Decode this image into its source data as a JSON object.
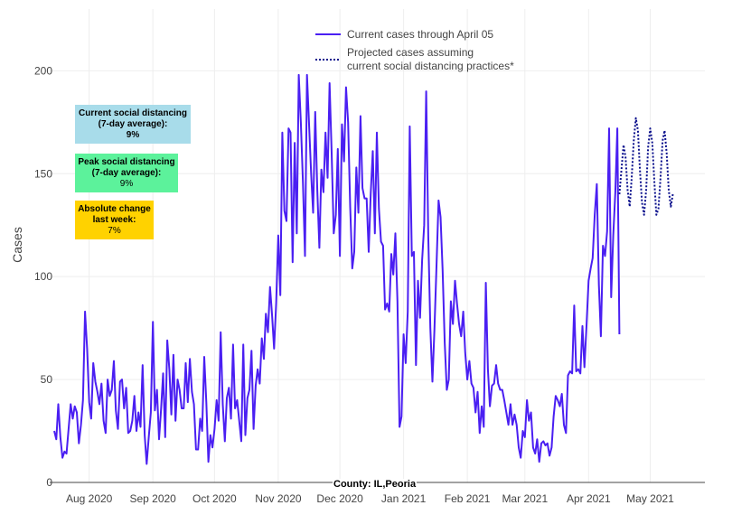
{
  "chart_data": {
    "type": "line",
    "ylabel": "Cases",
    "ylim": [
      0,
      230
    ],
    "yticks": [
      0,
      50,
      100,
      150,
      200
    ],
    "x_domain_days": [
      0,
      310
    ],
    "x_start_date": "2020-07-15",
    "xticks": [
      {
        "label": "Aug 2020",
        "day": 17
      },
      {
        "label": "Sep 2020",
        "day": 48
      },
      {
        "label": "Oct 2020",
        "day": 78
      },
      {
        "label": "Nov 2020",
        "day": 109
      },
      {
        "label": "Dec 2020",
        "day": 139
      },
      {
        "label": "Jan 2021",
        "day": 170
      },
      {
        "label": "Feb 2021",
        "day": 201
      },
      {
        "label": "Mar 2021",
        "day": 229
      },
      {
        "label": "Apr 2021",
        "day": 260
      },
      {
        "label": "May 2021",
        "day": 290
      }
    ],
    "legend": {
      "position": "top-center",
      "items": [
        {
          "label": "Current cases through April 05",
          "style": "solid"
        },
        {
          "label_line1": "Projected cases assuming",
          "label_line2": "current social distancing practices*",
          "style": "dotted"
        }
      ]
    },
    "series": [
      {
        "name": "Current cases through April 05",
        "color": "#4a1ff2",
        "style": "solid",
        "values": [
          [
            0,
            25
          ],
          [
            1,
            21
          ],
          [
            2,
            38
          ],
          [
            3,
            22
          ],
          [
            4,
            12
          ],
          [
            5,
            15
          ],
          [
            6,
            14
          ],
          [
            7,
            26
          ],
          [
            8,
            38
          ],
          [
            9,
            31
          ],
          [
            10,
            37
          ],
          [
            11,
            34
          ],
          [
            12,
            19
          ],
          [
            13,
            28
          ],
          [
            14,
            40
          ],
          [
            15,
            83
          ],
          [
            16,
            65
          ],
          [
            17,
            39
          ],
          [
            18,
            31
          ],
          [
            19,
            58
          ],
          [
            20,
            49
          ],
          [
            21,
            44
          ],
          [
            22,
            38
          ],
          [
            23,
            48
          ],
          [
            24,
            30
          ],
          [
            25,
            24
          ],
          [
            26,
            50
          ],
          [
            27,
            42
          ],
          [
            28,
            45
          ],
          [
            29,
            59
          ],
          [
            30,
            35
          ],
          [
            31,
            26
          ],
          [
            32,
            49
          ],
          [
            33,
            50
          ],
          [
            34,
            36
          ],
          [
            35,
            46
          ],
          [
            36,
            24
          ],
          [
            37,
            25
          ],
          [
            38,
            30
          ],
          [
            39,
            42
          ],
          [
            40,
            25
          ],
          [
            41,
            34
          ],
          [
            42,
            27
          ],
          [
            43,
            57
          ],
          [
            44,
            23
          ],
          [
            45,
            9
          ],
          [
            46,
            22
          ],
          [
            47,
            34
          ],
          [
            48,
            78
          ],
          [
            49,
            35
          ],
          [
            50,
            45
          ],
          [
            51,
            21
          ],
          [
            52,
            36
          ],
          [
            53,
            53
          ],
          [
            54,
            22
          ],
          [
            55,
            69
          ],
          [
            56,
            55
          ],
          [
            57,
            33
          ],
          [
            58,
            62
          ],
          [
            59,
            30
          ],
          [
            60,
            50
          ],
          [
            61,
            45
          ],
          [
            62,
            36
          ],
          [
            63,
            36
          ],
          [
            64,
            58
          ],
          [
            65,
            39
          ],
          [
            66,
            60
          ],
          [
            67,
            44
          ],
          [
            68,
            38
          ],
          [
            69,
            16
          ],
          [
            70,
            16
          ],
          [
            71,
            31
          ],
          [
            72,
            25
          ],
          [
            73,
            61
          ],
          [
            74,
            39
          ],
          [
            75,
            10
          ],
          [
            76,
            23
          ],
          [
            77,
            17
          ],
          [
            78,
            26
          ],
          [
            79,
            40
          ],
          [
            80,
            30
          ],
          [
            81,
            73
          ],
          [
            82,
            38
          ],
          [
            83,
            20
          ],
          [
            84,
            41
          ],
          [
            85,
            46
          ],
          [
            86,
            31
          ],
          [
            87,
            67
          ],
          [
            88,
            36
          ],
          [
            89,
            40
          ],
          [
            90,
            30
          ],
          [
            91,
            20
          ],
          [
            92,
            67
          ],
          [
            93,
            23
          ],
          [
            94,
            41
          ],
          [
            95,
            45
          ],
          [
            96,
            64
          ],
          [
            97,
            26
          ],
          [
            98,
            47
          ],
          [
            99,
            55
          ],
          [
            100,
            48
          ],
          [
            101,
            70
          ],
          [
            102,
            60
          ],
          [
            103,
            82
          ],
          [
            104,
            73
          ],
          [
            105,
            95
          ],
          [
            106,
            81
          ],
          [
            107,
            65
          ],
          [
            108,
            87
          ],
          [
            109,
            120
          ],
          [
            110,
            91
          ],
          [
            111,
            170
          ],
          [
            112,
            132
          ],
          [
            113,
            127
          ],
          [
            114,
            172
          ],
          [
            115,
            170
          ],
          [
            116,
            107
          ],
          [
            117,
            165
          ],
          [
            118,
            121
          ],
          [
            119,
            198
          ],
          [
            120,
            175
          ],
          [
            121,
            146
          ],
          [
            122,
            110
          ],
          [
            123,
            198
          ],
          [
            124,
            174
          ],
          [
            125,
            150
          ],
          [
            126,
            131
          ],
          [
            127,
            180
          ],
          [
            128,
            142
          ],
          [
            129,
            114
          ],
          [
            130,
            152
          ],
          [
            131,
            141
          ],
          [
            132,
            170
          ],
          [
            133,
            148
          ],
          [
            134,
            194
          ],
          [
            135,
            160
          ],
          [
            136,
            121
          ],
          [
            137,
            130
          ],
          [
            138,
            162
          ],
          [
            139,
            110
          ],
          [
            140,
            174
          ],
          [
            141,
            156
          ],
          [
            142,
            192
          ],
          [
            143,
            175
          ],
          [
            144,
            134
          ],
          [
            145,
            104
          ],
          [
            146,
            112
          ],
          [
            147,
            153
          ],
          [
            148,
            131
          ],
          [
            149,
            178
          ],
          [
            150,
            143
          ],
          [
            151,
            138
          ],
          [
            152,
            138
          ],
          [
            153,
            112
          ],
          [
            154,
            140
          ],
          [
            155,
            161
          ],
          [
            156,
            121
          ],
          [
            157,
            170
          ],
          [
            158,
            133
          ],
          [
            159,
            117
          ],
          [
            160,
            115
          ],
          [
            161,
            84
          ],
          [
            162,
            87
          ],
          [
            163,
            83
          ],
          [
            164,
            111
          ],
          [
            165,
            101
          ],
          [
            166,
            121
          ],
          [
            167,
            88
          ],
          [
            168,
            27
          ],
          [
            169,
            32
          ],
          [
            170,
            72
          ],
          [
            171,
            58
          ],
          [
            172,
            83
          ],
          [
            173,
            173
          ],
          [
            174,
            110
          ],
          [
            175,
            112
          ],
          [
            176,
            57
          ],
          [
            177,
            98
          ],
          [
            178,
            80
          ],
          [
            179,
            108
          ],
          [
            180,
            125
          ],
          [
            181,
            190
          ],
          [
            182,
            120
          ],
          [
            183,
            75
          ],
          [
            184,
            49
          ],
          [
            185,
            74
          ],
          [
            186,
            105
          ],
          [
            187,
            137
          ],
          [
            188,
            129
          ],
          [
            189,
            103
          ],
          [
            190,
            68
          ],
          [
            191,
            45
          ],
          [
            192,
            50
          ],
          [
            193,
            88
          ],
          [
            194,
            77
          ],
          [
            195,
            98
          ],
          [
            196,
            87
          ],
          [
            197,
            77
          ],
          [
            198,
            71
          ],
          [
            199,
            83
          ],
          [
            200,
            63
          ],
          [
            201,
            50
          ],
          [
            202,
            59
          ],
          [
            203,
            48
          ],
          [
            204,
            46
          ],
          [
            205,
            34
          ],
          [
            206,
            44
          ],
          [
            207,
            24
          ],
          [
            208,
            37
          ],
          [
            209,
            27
          ],
          [
            210,
            97
          ],
          [
            211,
            55
          ],
          [
            212,
            37
          ],
          [
            213,
            47
          ],
          [
            214,
            48
          ],
          [
            215,
            57
          ],
          [
            216,
            48
          ],
          [
            217,
            45
          ],
          [
            218,
            45
          ],
          [
            219,
            40
          ],
          [
            220,
            34
          ],
          [
            221,
            28
          ],
          [
            222,
            38
          ],
          [
            223,
            28
          ],
          [
            224,
            33
          ],
          [
            225,
            28
          ],
          [
            226,
            17
          ],
          [
            227,
            12
          ],
          [
            228,
            25
          ],
          [
            229,
            22
          ],
          [
            230,
            40
          ],
          [
            231,
            30
          ],
          [
            232,
            34
          ],
          [
            233,
            17
          ],
          [
            234,
            14
          ],
          [
            235,
            21
          ],
          [
            236,
            10
          ],
          [
            237,
            19
          ],
          [
            238,
            20
          ],
          [
            239,
            18
          ],
          [
            240,
            19
          ],
          [
            241,
            13
          ],
          [
            242,
            17
          ],
          [
            243,
            32
          ],
          [
            244,
            42
          ],
          [
            245,
            40
          ],
          [
            246,
            37
          ],
          [
            247,
            43
          ],
          [
            248,
            28
          ],
          [
            249,
            24
          ],
          [
            250,
            52
          ],
          [
            251,
            54
          ],
          [
            252,
            53
          ],
          [
            253,
            86
          ],
          [
            254,
            54
          ],
          [
            255,
            55
          ],
          [
            256,
            53
          ],
          [
            257,
            76
          ],
          [
            258,
            56
          ],
          [
            259,
            76
          ],
          [
            260,
            98
          ],
          [
            261,
            104
          ],
          [
            262,
            109
          ],
          [
            263,
            130
          ],
          [
            264,
            145
          ],
          [
            265,
            96
          ],
          [
            266,
            71
          ],
          [
            267,
            115
          ],
          [
            268,
            110
          ],
          [
            269,
            122
          ],
          [
            270,
            172
          ],
          [
            271,
            90
          ],
          [
            272,
            120
          ],
          [
            273,
            141
          ],
          [
            274,
            172
          ],
          [
            275,
            72
          ]
        ]
      },
      {
        "name": "Projected cases assuming current social distancing practices*",
        "color": "#0a0f8c",
        "style": "dotted",
        "values": [
          [
            275,
            140
          ],
          [
            276,
            152
          ],
          [
            277,
            164
          ],
          [
            278,
            158
          ],
          [
            279,
            142
          ],
          [
            280,
            134
          ],
          [
            281,
            148
          ],
          [
            282,
            166
          ],
          [
            283,
            177
          ],
          [
            284,
            171
          ],
          [
            285,
            152
          ],
          [
            286,
            136
          ],
          [
            287,
            130
          ],
          [
            288,
            142
          ],
          [
            289,
            163
          ],
          [
            290,
            172
          ],
          [
            291,
            165
          ],
          [
            292,
            146
          ],
          [
            293,
            130
          ],
          [
            294,
            133
          ],
          [
            295,
            148
          ],
          [
            296,
            166
          ],
          [
            297,
            171
          ],
          [
            298,
            160
          ],
          [
            299,
            142
          ],
          [
            300,
            134
          ],
          [
            301,
            140
          ]
        ]
      }
    ]
  },
  "info_boxes": [
    {
      "title_line1": "Current social distancing",
      "title_line2": "(7-day average):",
      "value": "9%",
      "value_bold": true,
      "color": "#a8dcea"
    },
    {
      "title_line1": "Peak social distancing",
      "title_line2": "(7-day average):",
      "value": "9%",
      "value_bold": false,
      "color": "#5cf29b"
    },
    {
      "title_line1": "Absolute change",
      "title_line2": "last week:",
      "value": "7%",
      "value_bold": false,
      "color": "#ffd200"
    }
  ],
  "annotation": "County: IL,Peoria"
}
